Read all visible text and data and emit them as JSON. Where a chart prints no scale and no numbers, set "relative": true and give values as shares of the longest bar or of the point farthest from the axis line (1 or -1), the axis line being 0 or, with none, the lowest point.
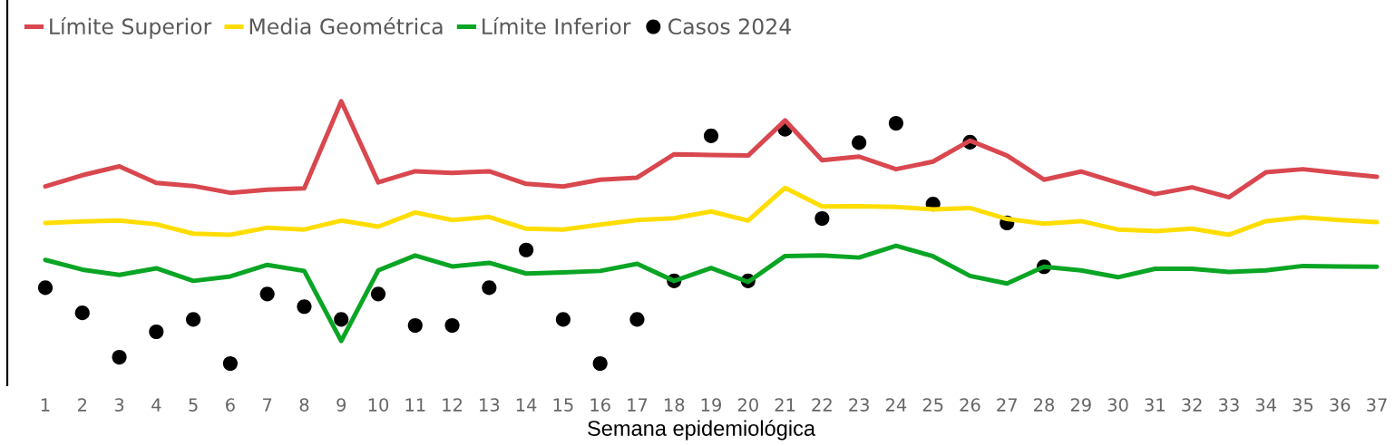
{
  "chart_data": {
    "type": "line",
    "xlabel": "Semana epidemiológica",
    "relative": true,
    "legend": "top left",
    "tick_labels": "x",
    "categories": [
      "1",
      "2",
      "3",
      "4",
      "5",
      "6",
      "7",
      "8",
      "9",
      "10",
      "11",
      "12",
      "13",
      "14",
      "15",
      "16",
      "17",
      "18",
      "19",
      "20",
      "21",
      "22",
      "23",
      "24",
      "25",
      "26",
      "27",
      "28",
      "29",
      "30",
      "31",
      "32",
      "33",
      "34",
      "35",
      "36",
      "37"
    ],
    "series": [
      {
        "name": "Límite Superior",
        "color": "#d9474f",
        "values": [
          0.675,
          0.718,
          0.752,
          0.689,
          0.677,
          0.651,
          0.663,
          0.668,
          1,
          0.691,
          0.733,
          0.727,
          0.733,
          0.685,
          0.675,
          0.701,
          0.709,
          0.798,
          0.795,
          0.793,
          0.927,
          0.775,
          0.789,
          0.741,
          0.77,
          0.85,
          0.793,
          0.701,
          0.732,
          0.689,
          0.646,
          0.672,
          0.634,
          0.729,
          0.741,
          0.726,
          0.712
        ]
      },
      {
        "name": "Media Geométrica",
        "color": "#ffdd00",
        "values": [
          0.536,
          0.542,
          0.545,
          0.531,
          0.495,
          0.491,
          0.518,
          0.511,
          0.545,
          0.522,
          0.576,
          0.547,
          0.559,
          0.514,
          0.511,
          0.53,
          0.547,
          0.554,
          0.58,
          0.545,
          0.67,
          0.599,
          0.6,
          0.597,
          0.588,
          0.593,
          0.551,
          0.533,
          0.543,
          0.511,
          0.505,
          0.514,
          0.491,
          0.543,
          0.557,
          0.547,
          0.539
        ]
      },
      {
        "name": "Límite Inferior",
        "color": "#0aa524",
        "values": [
          0.395,
          0.358,
          0.338,
          0.363,
          0.315,
          0.332,
          0.376,
          0.353,
          0.086,
          0.355,
          0.412,
          0.37,
          0.384,
          0.343,
          0.347,
          0.353,
          0.38,
          0.315,
          0.364,
          0.311,
          0.41,
          0.412,
          0.404,
          0.449,
          0.409,
          0.334,
          0.305,
          0.369,
          0.355,
          0.329,
          0.361,
          0.361,
          0.349,
          0.355,
          0.372,
          0.37,
          0.369
        ]
      },
      {
        "name": "Casos 2024",
        "type": "scatter",
        "marker": "circle",
        "color": "#000000",
        "values": [
          0.289,
          0.193,
          0.024,
          0.121,
          0.168,
          0,
          0.265,
          0.217,
          0.168,
          0.265,
          0.145,
          0.145,
          0.289,
          0.433,
          0.168,
          0,
          0.168,
          0.315,
          0.868,
          0.315,
          0.893,
          0.553,
          0.842,
          0.916,
          0.608,
          0.844,
          0.536,
          0.369,
          null,
          null,
          null,
          null,
          null,
          null,
          null,
          null,
          null
        ]
      }
    ]
  }
}
